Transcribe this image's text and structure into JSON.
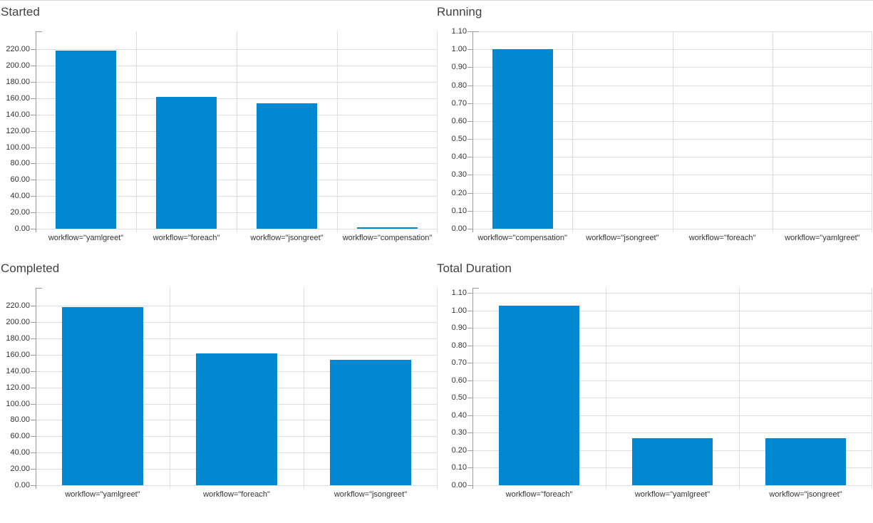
{
  "page": {
    "background": "#ffffff",
    "top_border_color": "#d9d9d9"
  },
  "colors": {
    "bar": "#0288d1",
    "grid": "#dddddd",
    "axis": "#9b9b9b",
    "tick_text": "#333333",
    "title_text": "#414141"
  },
  "chart_data": [
    {
      "type": "bar",
      "title": "Started",
      "categories": [
        "workflow=\"yamlgreet\"",
        "workflow=\"foreach\"",
        "workflow=\"jsongreet\"",
        "workflow=\"compensation\""
      ],
      "values": [
        218.5,
        162,
        154,
        2
      ],
      "xlabel": "",
      "ylabel": "",
      "ylim": [
        0,
        242
      ],
      "grid": true,
      "legend_position": "none",
      "ytick_values": [
        0,
        20,
        40,
        60,
        80,
        100,
        120,
        140,
        160,
        180,
        200,
        220
      ],
      "ytick_labels": [
        "0.00",
        "20.00",
        "40.00",
        "60.00",
        "80.00",
        "100.00",
        "120.00",
        "140.00",
        "160.00",
        "180.00",
        "200.00",
        "220.00"
      ]
    },
    {
      "type": "bar",
      "title": "Running",
      "categories": [
        "workflow=\"compensation\"",
        "workflow=\"jsongreet\"",
        "workflow=\"foreach\"",
        "workflow=\"yamlgreet\""
      ],
      "values": [
        1.0,
        0,
        0,
        0
      ],
      "xlabel": "",
      "ylabel": "",
      "ylim": [
        0,
        1.1
      ],
      "grid": true,
      "legend_position": "none",
      "ytick_values": [
        0,
        0.1,
        0.2,
        0.3,
        0.4,
        0.5,
        0.6,
        0.7,
        0.8,
        0.9,
        1.0,
        1.1
      ],
      "ytick_labels": [
        "0.00",
        "0.10",
        "0.20",
        "0.30",
        "0.40",
        "0.50",
        "0.60",
        "0.70",
        "0.80",
        "0.90",
        "1.00",
        "1.10"
      ]
    },
    {
      "type": "bar",
      "title": "Completed",
      "categories": [
        "workflow=\"yamlgreet\"",
        "workflow=\"foreach\"",
        "workflow=\"jsongreet\""
      ],
      "values": [
        218.5,
        161.5,
        154
      ],
      "xlabel": "",
      "ylabel": "",
      "ylim": [
        0,
        242
      ],
      "grid": true,
      "legend_position": "none",
      "ytick_values": [
        0,
        20,
        40,
        60,
        80,
        100,
        120,
        140,
        160,
        180,
        200,
        220
      ],
      "ytick_labels": [
        "0.00",
        "20.00",
        "40.00",
        "60.00",
        "80.00",
        "100.00",
        "120.00",
        "140.00",
        "160.00",
        "180.00",
        "200.00",
        "220.00"
      ]
    },
    {
      "type": "bar",
      "title": "Total Duration",
      "categories": [
        "workflow=\"foreach\"",
        "workflow=\"yamlgreet\"",
        "workflow=\"jsongreet\""
      ],
      "values": [
        1.03,
        0.27,
        0.27
      ],
      "xlabel": "",
      "ylabel": "",
      "ylim": [
        0,
        1.13
      ],
      "grid": true,
      "legend_position": "none",
      "ytick_values": [
        0,
        0.1,
        0.2,
        0.3,
        0.4,
        0.5,
        0.6,
        0.7,
        0.8,
        0.9,
        1.0,
        1.1
      ],
      "ytick_labels": [
        "0.00",
        "0.10",
        "0.20",
        "0.30",
        "0.40",
        "0.50",
        "0.60",
        "0.70",
        "0.80",
        "0.90",
        "1.00",
        "1.10"
      ]
    }
  ]
}
